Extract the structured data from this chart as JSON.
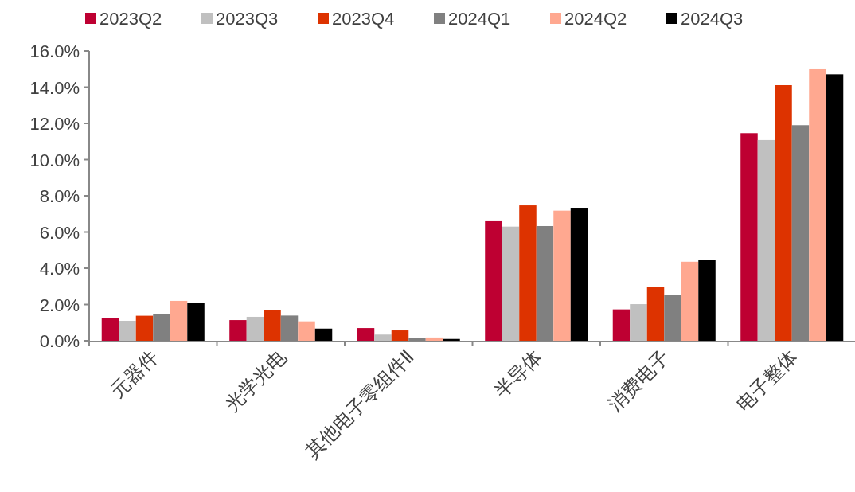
{
  "chart_data": {
    "type": "bar",
    "categories": [
      "元器件",
      "光学光电",
      "其他电子零组件Ⅱ",
      "半导体",
      "消费电子",
      "电子整体"
    ],
    "series": [
      {
        "name": "2023Q2",
        "color": "#be0032",
        "values": [
          1.26,
          1.14,
          0.7,
          6.64,
          1.73,
          11.46
        ]
      },
      {
        "name": "2023Q3",
        "color": "#c0c0c0",
        "values": [
          1.1,
          1.32,
          0.34,
          6.3,
          2.02,
          11.08
        ]
      },
      {
        "name": "2023Q4",
        "color": "#dd3300",
        "values": [
          1.38,
          1.7,
          0.57,
          7.47,
          2.98,
          14.11
        ]
      },
      {
        "name": "2024Q1",
        "color": "#808080",
        "values": [
          1.48,
          1.39,
          0.15,
          6.33,
          2.52,
          11.9
        ]
      },
      {
        "name": "2024Q2",
        "color": "#ffa890",
        "values": [
          2.2,
          1.07,
          0.18,
          7.18,
          4.36,
          14.99
        ]
      },
      {
        "name": "2024Q3",
        "color": "#000000",
        "values": [
          2.11,
          0.67,
          0.1,
          7.34,
          4.48,
          14.71
        ]
      }
    ],
    "ylim": [
      0,
      16
    ],
    "yticks": [
      {
        "value": 0,
        "label": "0.0%"
      },
      {
        "value": 2,
        "label": "2.0%"
      },
      {
        "value": 4,
        "label": "4.0%"
      },
      {
        "value": 6,
        "label": "6.0%"
      },
      {
        "value": 8,
        "label": "8.0%"
      },
      {
        "value": 10,
        "label": "10.0%"
      },
      {
        "value": 12,
        "label": "12.0%"
      },
      {
        "value": 14,
        "label": "14.0%"
      },
      {
        "value": 16,
        "label": "16.0%"
      }
    ],
    "grid": false,
    "legend": "top"
  }
}
